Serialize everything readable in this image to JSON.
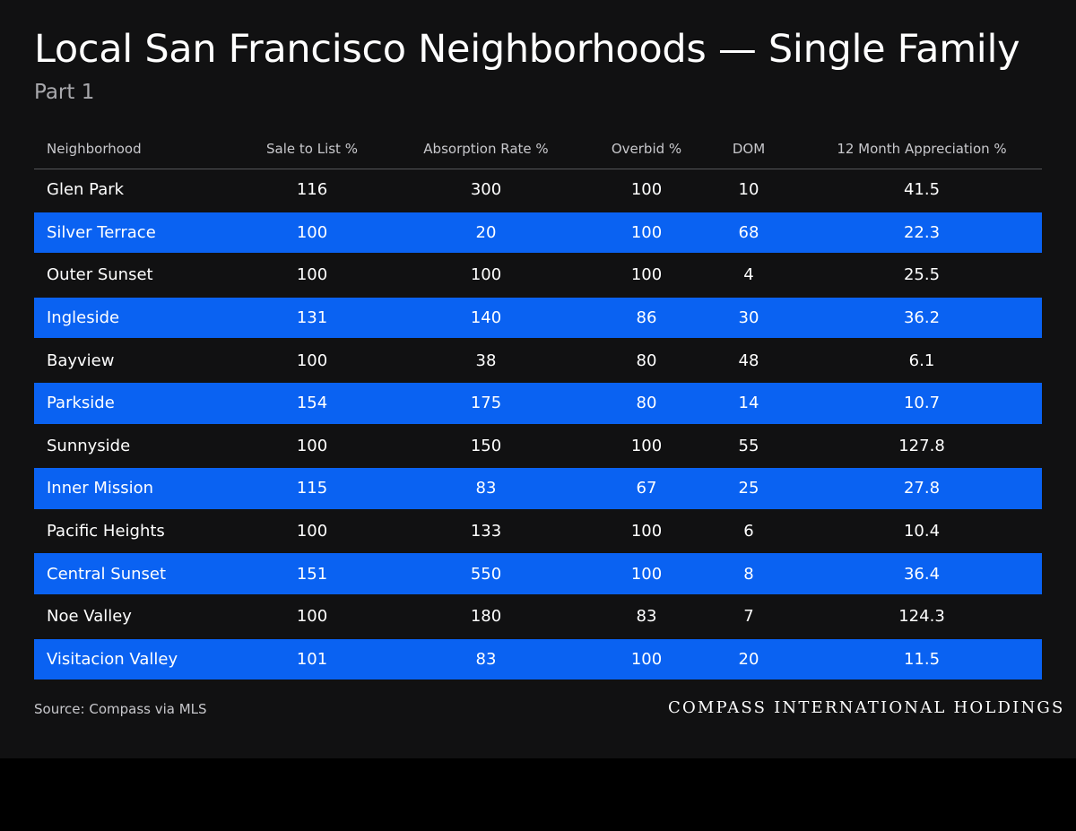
{
  "page": {
    "title": "Local San Francisco Neighborhoods — Single Family",
    "subtitle": "Part 1",
    "source": "Source: Compass via MLS",
    "brand": "COMPASS INTERNATIONAL HOLDINGS"
  },
  "colors": {
    "background": "#111112",
    "accent_row": "#0a62f2",
    "text": "#ffffff",
    "muted_text": "#c8c8cc"
  },
  "chart_data": {
    "type": "table",
    "title": "Local San Francisco Neighborhoods — Single Family",
    "subtitle": "Part 1",
    "columns": [
      "Neighborhood",
      "Sale to List %",
      "Absorption Rate %",
      "Overbid %",
      "DOM",
      "12 Month Appreciation %"
    ],
    "rows": [
      [
        "Glen Park",
        "116",
        "300",
        "100",
        "10",
        "41.5"
      ],
      [
        "Silver Terrace",
        "100",
        "20",
        "100",
        "68",
        "22.3"
      ],
      [
        "Outer Sunset",
        "100",
        "100",
        "100",
        "4",
        "25.5"
      ],
      [
        "Ingleside",
        "131",
        "140",
        "86",
        "30",
        "36.2"
      ],
      [
        "Bayview",
        "100",
        "38",
        "80",
        "48",
        "6.1"
      ],
      [
        "Parkside",
        "154",
        "175",
        "80",
        "14",
        "10.7"
      ],
      [
        "Sunnyside",
        "100",
        "150",
        "100",
        "55",
        "127.8"
      ],
      [
        "Inner Mission",
        "115",
        "83",
        "67",
        "25",
        "27.8"
      ],
      [
        "Pacific Heights",
        "100",
        "133",
        "100",
        "6",
        "10.4"
      ],
      [
        "Central Sunset",
        "151",
        "550",
        "100",
        "8",
        "36.4"
      ],
      [
        "Noe Valley",
        "100",
        "180",
        "83",
        "7",
        "124.3"
      ],
      [
        "Visitacion Valley",
        "101",
        "83",
        "100",
        "20",
        "11.5"
      ]
    ]
  }
}
